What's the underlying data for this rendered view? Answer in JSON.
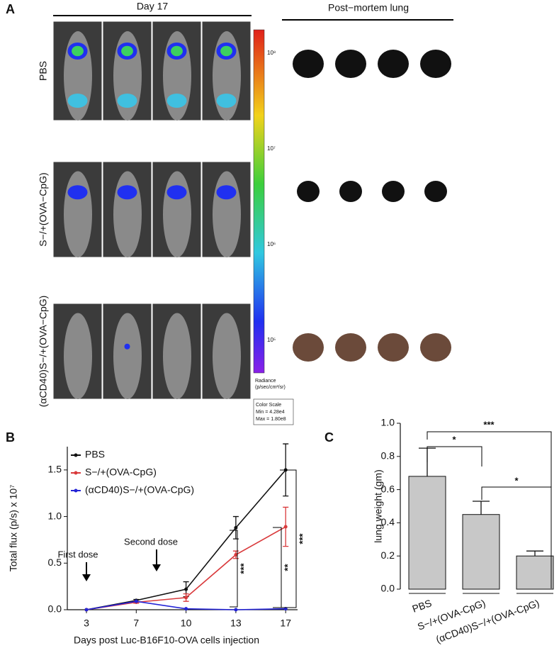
{
  "panel_a": {
    "label": "A",
    "imaging_title": "Day 17",
    "lung_title": "Post−mortem lung",
    "groups": [
      "PBS",
      "S−/+(OVA−CpG)",
      "(αCD40)S−/+(OVA−CpG)"
    ],
    "color_scale": {
      "labels": [
        "10⁸",
        "10⁷",
        "10⁶",
        "10⁵"
      ],
      "title": "Radiance",
      "unit": "(p/sec/cm²/sr)",
      "caption": "Color Scale",
      "min": "Min = 4.28e4",
      "max": "Max = 1.80e8"
    }
  },
  "chart_data": [
    {
      "type": "line",
      "panel": "B",
      "ylabel": "Total flux (p/s) x 10⁷",
      "xlabel": "Days post Luc-B16F10-OVA cells injection",
      "categories": [
        "3",
        "7",
        "10",
        "13",
        "17"
      ],
      "ylim": [
        0,
        1.75
      ],
      "yticks": [
        {
          "value": 0,
          "label": "0.0"
        },
        {
          "value": 0.5,
          "label": "0.5"
        },
        {
          "value": 1,
          "label": "1.0"
        },
        {
          "value": 1.5,
          "label": "1.5"
        }
      ],
      "series": [
        {
          "name": "PBS",
          "color": "#111111",
          "values": [
            0,
            0.1,
            0.22,
            0.88,
            1.5
          ],
          "errors": [
            0,
            0.01,
            0.08,
            0.12,
            0.28
          ]
        },
        {
          "name": "S−/+(OVA-CpG)",
          "color": "#d9393b",
          "values": [
            0,
            0.08,
            0.13,
            0.59,
            0.89
          ],
          "errors": [
            0,
            0.01,
            0.04,
            0.04,
            0.21
          ]
        },
        {
          "name": "(αCD40)S−/+(OVA-CpG)",
          "color": "#2424d6",
          "values": [
            0,
            0.09,
            0.01,
            0,
            0.01
          ],
          "errors": [
            0,
            0,
            0,
            0,
            0
          ]
        }
      ],
      "annotations": [
        "First dose",
        "Second dose",
        "***",
        "**",
        "***"
      ]
    },
    {
      "type": "bar",
      "panel": "C",
      "ylabel": "lung weight (gm)",
      "categories": [
        "PBS",
        "S−/+(OVA-CpG)",
        "(αCD40)S−/+(OVA-CpG)"
      ],
      "values": [
        0.68,
        0.45,
        0.2
      ],
      "errors": [
        0.17,
        0.08,
        0.03
      ],
      "color": "#c8c8c8",
      "ylim": [
        0,
        1
      ],
      "yticks": [
        {
          "value": 0,
          "label": "0.0"
        },
        {
          "value": 0.2,
          "label": "0.2"
        },
        {
          "value": 0.4,
          "label": "0.4"
        },
        {
          "value": 0.6,
          "label": "0.6"
        },
        {
          "value": 0.8,
          "label": "0.8"
        },
        {
          "value": 1,
          "label": "1.0"
        }
      ],
      "annotations": [
        "*",
        "***",
        "*"
      ]
    }
  ]
}
